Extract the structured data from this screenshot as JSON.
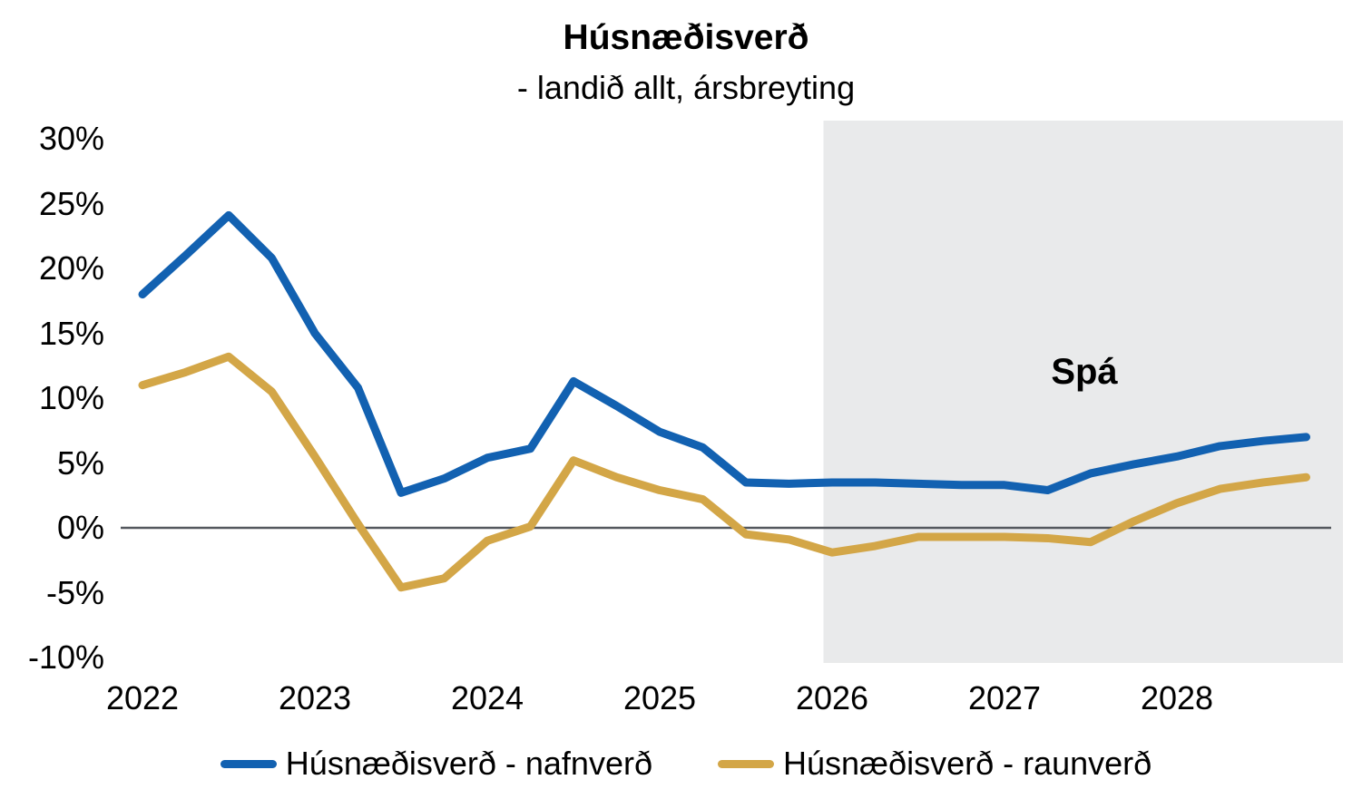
{
  "chart_data": {
    "type": "line",
    "title": "Húsnæðisverð",
    "subtitle": "- landið allt, ársbreyting",
    "grid": false,
    "legend_position": "bottom",
    "x_axis": {
      "tick_labels": [
        "2022",
        "2023",
        "2024",
        "2025",
        "2026",
        "2027",
        "2028"
      ],
      "categories_per_tick": 4
    },
    "y_axis": {
      "min": -10,
      "max": 30,
      "step": 5,
      "tick_values": [
        30,
        25,
        20,
        15,
        10,
        5,
        0,
        -5,
        -10
      ],
      "tick_labels": [
        "30%",
        "25%",
        "20%",
        "15%",
        "10%",
        "5%",
        "0%",
        "-5%",
        "-10%"
      ],
      "format": "percent"
    },
    "categories": [
      "2022Q1",
      "2022Q2",
      "2022Q3",
      "2022Q4",
      "2023Q1",
      "2023Q2",
      "2023Q3",
      "2023Q4",
      "2024Q1",
      "2024Q2",
      "2024Q3",
      "2024Q4",
      "2025Q1",
      "2025Q2",
      "2025Q3",
      "2025Q4",
      "2026Q1",
      "2026Q2",
      "2026Q3",
      "2026Q4",
      "2027Q1",
      "2027Q2",
      "2027Q3",
      "2027Q4",
      "2028Q1",
      "2028Q2",
      "2028Q3",
      "2028Q4"
    ],
    "series": [
      {
        "name": "Húsnæðisverð - nafnverð",
        "color": "#1261b1",
        "values": [
          18.0,
          21.0,
          24.1,
          20.8,
          15.0,
          10.8,
          2.7,
          3.8,
          5.4,
          6.1,
          11.3,
          9.4,
          7.4,
          6.2,
          3.5,
          3.4,
          3.5,
          3.5,
          3.4,
          3.3,
          3.3,
          2.9,
          4.2,
          4.9,
          5.5,
          6.3,
          6.7,
          7.0
        ]
      },
      {
        "name": "Húsnæðisverð - raunverð",
        "color": "#d3a647",
        "values": [
          11.0,
          12.0,
          13.2,
          10.5,
          5.5,
          0.3,
          -4.6,
          -3.9,
          -1.0,
          0.1,
          5.2,
          3.9,
          2.9,
          2.2,
          -0.5,
          -0.9,
          -1.9,
          -1.4,
          -0.7,
          -0.7,
          -0.7,
          -0.8,
          -1.1,
          0.5,
          1.9,
          3.0,
          3.5,
          3.9
        ]
      }
    ],
    "forecast": {
      "label": "Spá",
      "start_category": "2026Q1",
      "region_color": "#e9eaeb"
    },
    "zero_line_color": "#54585e"
  }
}
